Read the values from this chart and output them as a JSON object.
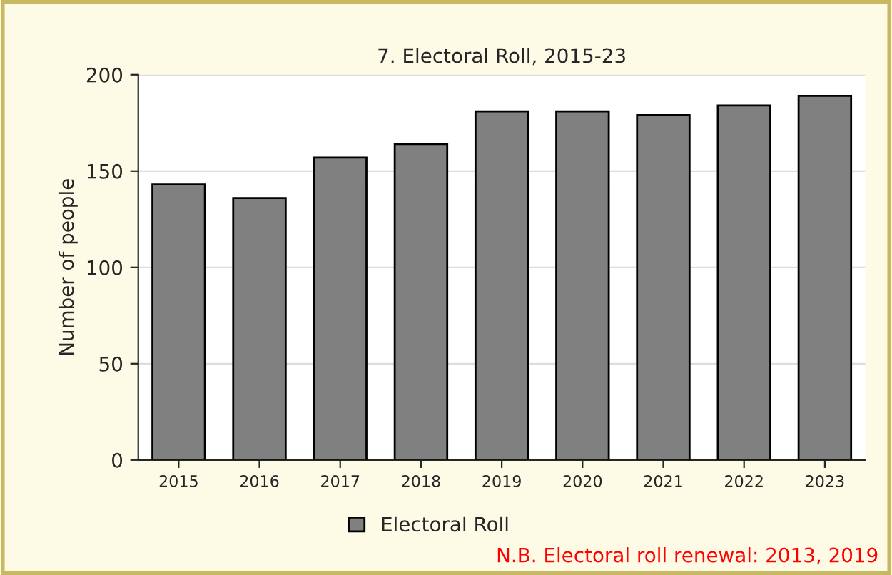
{
  "chart_data": {
    "type": "bar",
    "title": "7. Electoral Roll, 2015-23",
    "ylabel": "Number of people",
    "categories": [
      "2015",
      "2016",
      "2017",
      "2018",
      "2019",
      "2020",
      "2021",
      "2022",
      "2023"
    ],
    "series": [
      {
        "name": "Electoral Roll",
        "color": "#808080",
        "values": [
          143,
          136,
          157,
          164,
          181,
          181,
          179,
          184,
          189
        ]
      }
    ],
    "ylim": [
      0,
      200
    ],
    "yticks": [
      0,
      50,
      100,
      150,
      200
    ],
    "grid": "y",
    "legend": "bottom",
    "annotations": [
      "N.B. Electoral roll renewal: 2013, 2019"
    ]
  }
}
